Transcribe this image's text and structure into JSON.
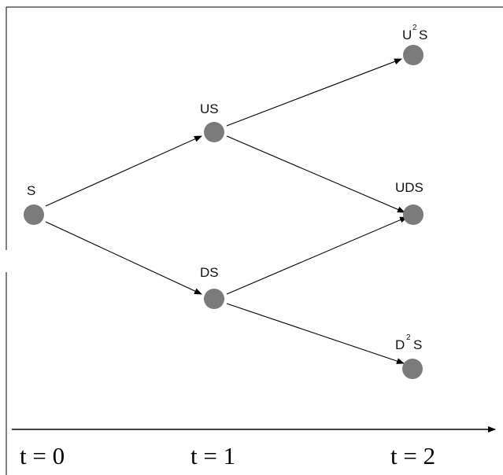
{
  "colors": {
    "node_fill": "#7b7b7b",
    "line": "#000000",
    "background": "#ffffff"
  },
  "nodes": {
    "s": {
      "label": "S"
    },
    "us": {
      "label": "US"
    },
    "ds": {
      "label": "DS"
    },
    "u2s": {
      "base": "U",
      "sup": "2",
      "tail": "S"
    },
    "uds": {
      "label": "UDS"
    },
    "d2s": {
      "base": "D",
      "sup": "2",
      "tail": "S"
    }
  },
  "time_axis": {
    "labels": [
      "t = 0",
      "t = 1",
      "t = 2"
    ]
  }
}
